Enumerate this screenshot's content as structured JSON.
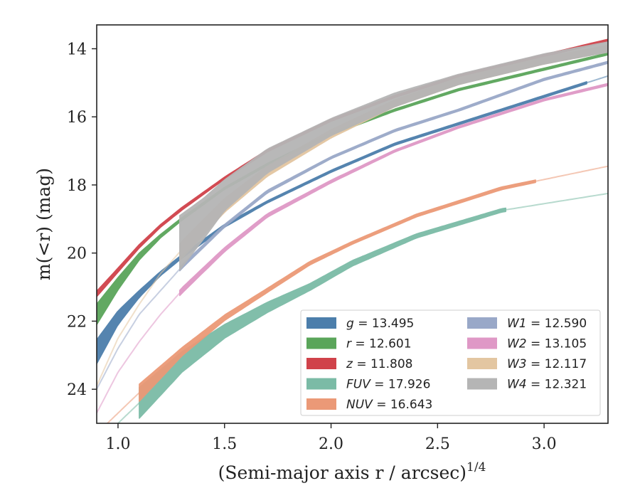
{
  "chart_data": {
    "type": "line",
    "xlabel": "(Semi-major axis r / arcsec)",
    "xlabel_exponent": "1/4",
    "ylabel": "m(<r) (mag)",
    "xlim": [
      0.9,
      3.3
    ],
    "ylim": [
      25.0,
      13.3
    ],
    "y_inverted": true,
    "xticks": [
      1.0,
      1.5,
      2.0,
      2.5,
      3.0
    ],
    "xtick_labels": [
      "1.0",
      "1.5",
      "2.0",
      "2.5",
      "3.0"
    ],
    "yticks": [
      14,
      16,
      18,
      20,
      22,
      24
    ],
    "ytick_labels": [
      "14",
      "16",
      "18",
      "20",
      "22",
      "24"
    ],
    "grid": false,
    "legend_position": "lower-right",
    "series": [
      {
        "name": "g = 13.495",
        "band": "g",
        "value": "13.495",
        "color": "#4c7eab",
        "x": [
          0.9,
          1.0,
          1.1,
          1.2,
          1.3,
          1.5,
          1.7,
          2.0,
          2.3,
          2.6,
          3.0,
          3.3
        ],
        "y": [
          22.9,
          21.9,
          21.2,
          20.6,
          20.1,
          19.2,
          18.5,
          17.6,
          16.8,
          16.2,
          15.4,
          14.8
        ],
        "band_width": [
          0.35,
          0.2,
          0.1,
          0.06,
          0.05,
          0.04,
          0.03,
          0.03,
          0.03,
          0.03,
          0.03,
          0.03
        ],
        "solid_xmax": 3.2
      },
      {
        "name": "r = 12.601",
        "band": "r",
        "value": "12.601",
        "color": "#5aa55a",
        "x": [
          0.9,
          1.0,
          1.1,
          1.2,
          1.3,
          1.5,
          1.7,
          2.0,
          2.3,
          2.6,
          3.0,
          3.3
        ],
        "y": [
          21.8,
          20.9,
          20.1,
          19.5,
          19.0,
          18.1,
          17.4,
          16.5,
          15.8,
          15.2,
          14.6,
          14.15
        ],
        "band_width": [
          0.3,
          0.18,
          0.1,
          0.05,
          0.04,
          0.03,
          0.03,
          0.03,
          0.03,
          0.03,
          0.03,
          0.03
        ],
        "solid_xmax": 3.3
      },
      {
        "name": "z = 11.808",
        "band": "z",
        "value": "11.808",
        "color": "#d0424a",
        "x": [
          0.9,
          1.0,
          1.1,
          1.2,
          1.3,
          1.5,
          1.7,
          2.0,
          2.3,
          2.6,
          3.0,
          3.3
        ],
        "y": [
          21.2,
          20.5,
          19.8,
          19.2,
          18.7,
          17.8,
          17.0,
          16.1,
          15.4,
          14.8,
          14.2,
          13.75
        ],
        "band_width": [
          0.08,
          0.06,
          0.05,
          0.04,
          0.04,
          0.03,
          0.03,
          0.03,
          0.03,
          0.03,
          0.03,
          0.03
        ],
        "solid_xmax": 3.3
      },
      {
        "name": "FUV = 17.926",
        "band": "FUV",
        "value": "17.926",
        "color": "#7bbba6",
        "x": [
          0.9,
          1.1,
          1.3,
          1.5,
          1.7,
          1.9,
          2.1,
          2.4,
          2.8,
          3.3
        ],
        "y": [
          25.6,
          24.4,
          23.2,
          22.3,
          21.6,
          21.0,
          20.3,
          19.5,
          18.75,
          18.25
        ],
        "band_width": [
          0.15,
          0.45,
          0.3,
          0.2,
          0.15,
          0.1,
          0.08,
          0.06,
          0.05,
          0.04
        ],
        "solid_xmin": 1.1,
        "solid_xmax": 2.82
      },
      {
        "name": "NUV = 16.643",
        "band": "NUV",
        "value": "16.643",
        "color": "#eb9977",
        "x": [
          0.9,
          1.1,
          1.3,
          1.5,
          1.7,
          1.9,
          2.1,
          2.4,
          2.8,
          3.3
        ],
        "y": [
          25.3,
          24.1,
          22.9,
          21.9,
          21.1,
          20.3,
          19.7,
          18.9,
          18.1,
          17.45
        ],
        "band_width": [
          0.1,
          0.25,
          0.12,
          0.08,
          0.06,
          0.05,
          0.04,
          0.04,
          0.04,
          0.03
        ],
        "solid_xmin": 1.1,
        "solid_xmax": 2.96
      },
      {
        "name": "W1 = 12.590",
        "band": "W1",
        "value": "12.590",
        "color": "#99a8c8",
        "x": [
          0.9,
          1.0,
          1.1,
          1.2,
          1.3,
          1.5,
          1.7,
          2.0,
          2.3,
          2.6,
          3.0,
          3.3
        ],
        "y": [
          24.0,
          22.8,
          21.8,
          21.1,
          20.4,
          19.2,
          18.2,
          17.2,
          16.4,
          15.8,
          14.9,
          14.4
        ],
        "band_width": [
          0.05,
          0.05,
          0.05,
          0.05,
          0.05,
          0.04,
          0.04,
          0.03,
          0.03,
          0.03,
          0.03,
          0.03
        ],
        "solid_xmin": 1.29,
        "solid_xmax": 3.3
      },
      {
        "name": "W2 = 13.105",
        "band": "W2",
        "value": "13.105",
        "color": "#df98c6",
        "x": [
          0.9,
          1.0,
          1.1,
          1.2,
          1.3,
          1.5,
          1.7,
          2.0,
          2.3,
          2.6,
          3.0,
          3.3
        ],
        "y": [
          24.7,
          23.5,
          22.6,
          21.8,
          21.1,
          19.9,
          18.9,
          17.9,
          17.0,
          16.3,
          15.5,
          15.05
        ],
        "band_width": [
          0.05,
          0.05,
          0.05,
          0.05,
          0.08,
          0.06,
          0.05,
          0.04,
          0.03,
          0.03,
          0.03,
          0.03
        ],
        "solid_xmin": 1.29,
        "solid_xmax": 3.3
      },
      {
        "name": "W3 = 12.117",
        "band": "W3",
        "value": "12.117",
        "color": "#e3c6a1",
        "x": [
          0.9,
          1.0,
          1.1,
          1.2,
          1.3,
          1.5,
          1.7,
          2.0,
          2.3,
          2.6,
          3.0,
          3.3
        ],
        "y": [
          23.9,
          22.5,
          21.5,
          20.6,
          19.9,
          18.6,
          17.6,
          16.5,
          15.6,
          14.95,
          14.35,
          14.0
        ],
        "band_width": [
          0.05,
          0.05,
          0.05,
          0.05,
          0.25,
          0.2,
          0.15,
          0.12,
          0.1,
          0.1,
          0.1,
          0.1
        ],
        "solid_xmin": 1.29,
        "solid_xmax": 3.3
      },
      {
        "name": "W4 = 12.321",
        "band": "W4",
        "value": "12.321",
        "color": "#b5b5b5",
        "x": [
          1.29,
          1.4,
          1.5,
          1.7,
          2.0,
          2.3,
          2.6,
          3.0,
          3.3
        ],
        "y": [
          19.7,
          19.0,
          18.3,
          17.3,
          16.3,
          15.5,
          14.9,
          14.3,
          13.95
        ],
        "band_width": [
          0.8,
          0.6,
          0.45,
          0.35,
          0.25,
          0.2,
          0.15,
          0.15,
          0.15
        ],
        "solid_xmin": 1.29,
        "solid_xmax": 3.3
      }
    ]
  }
}
